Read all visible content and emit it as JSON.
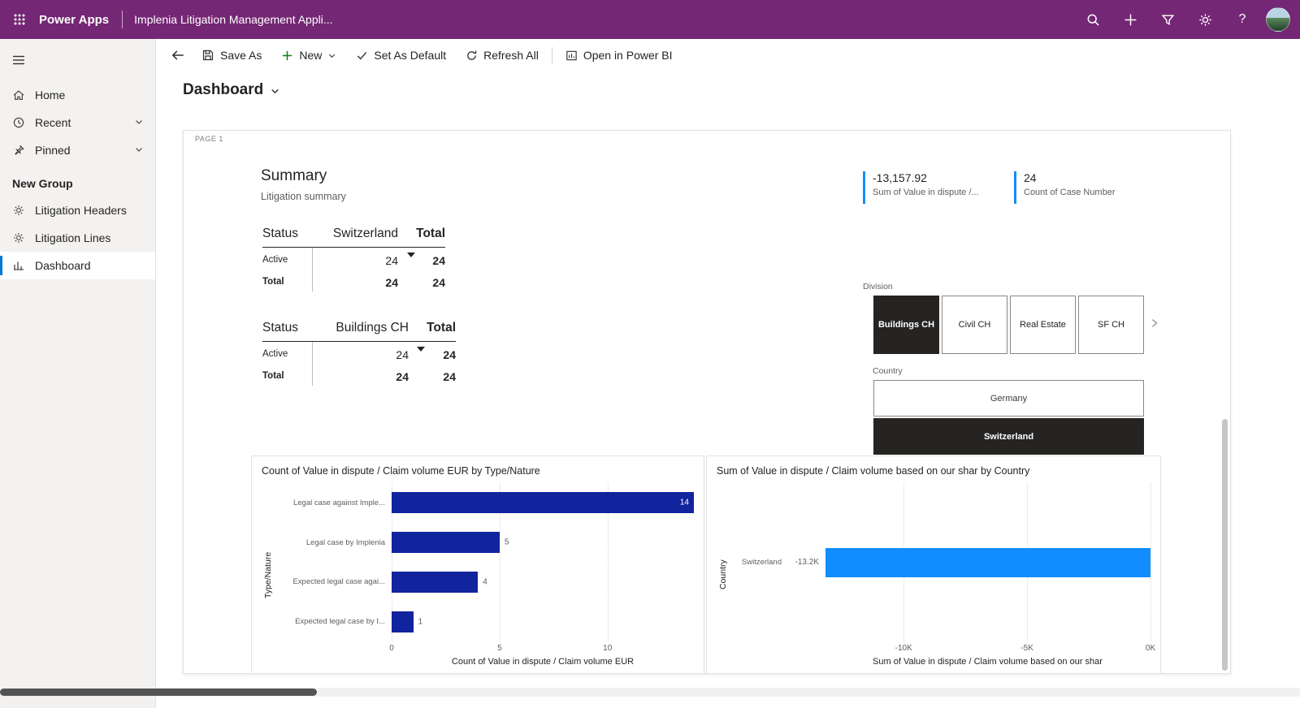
{
  "topbar": {
    "brand": "Power Apps",
    "app_title": "Implenia Litigation Management Appli..."
  },
  "sidebar": {
    "items": [
      {
        "label": "Home"
      },
      {
        "label": "Recent"
      },
      {
        "label": "Pinned"
      }
    ],
    "group_label": "New Group",
    "group_items": [
      {
        "label": "Litigation Headers"
      },
      {
        "label": "Litigation Lines"
      },
      {
        "label": "Dashboard"
      }
    ]
  },
  "toolbar": {
    "save_as": "Save As",
    "new": "New",
    "set_as_default": "Set As Default",
    "refresh_all": "Refresh All",
    "open_power_bi": "Open in Power BI"
  },
  "page": {
    "title": "Dashboard",
    "report_page_label": "PAGE 1"
  },
  "summary": {
    "title": "Summary",
    "subtitle": "Litigation summary"
  },
  "kpis": [
    {
      "value": "-13,157.92",
      "label": "Sum of Value in dispute /..."
    },
    {
      "value": "24",
      "label": "Count of Case Number"
    }
  ],
  "matrices": [
    {
      "row_header": "Status",
      "columns": [
        "Switzerland",
        "Total"
      ],
      "rows": [
        {
          "label": "Active",
          "values": [
            "24",
            "24"
          ]
        },
        {
          "label": "Total",
          "values": [
            "24",
            "24"
          ]
        }
      ]
    },
    {
      "row_header": "Status",
      "columns": [
        "Buildings CH",
        "Total"
      ],
      "rows": [
        {
          "label": "Active",
          "values": [
            "24",
            "24"
          ]
        },
        {
          "label": "Total",
          "values": [
            "24",
            "24"
          ]
        }
      ]
    }
  ],
  "slicers": {
    "division": {
      "label": "Division",
      "options": [
        {
          "label": "Buildings CH",
          "selected": true
        },
        {
          "label": "Civil CH",
          "selected": false
        },
        {
          "label": "Real Estate",
          "selected": false
        },
        {
          "label": "SF CH",
          "selected": false
        }
      ]
    },
    "country": {
      "label": "Country",
      "options": [
        {
          "label": "Germany",
          "selected": false
        },
        {
          "label": "Switzerland",
          "selected": true
        }
      ]
    }
  },
  "chart_data": [
    {
      "type": "bar",
      "orientation": "horizontal",
      "title": "Count of Value in dispute / Claim volume EUR by Type/Nature",
      "categories": [
        "Legal case against Imple...",
        "Legal case by Implenia",
        "Expected legal case agai...",
        "Expected legal case by I..."
      ],
      "values": [
        14,
        5,
        4,
        1
      ],
      "data_labels": [
        "14",
        "5",
        "4",
        "1"
      ],
      "xlabel": "Count of Value in dispute / Claim volume EUR",
      "ylabel": "Type/Nature",
      "xlim": [
        0,
        14
      ],
      "xticks": [
        {
          "value": 0,
          "label": "0"
        },
        {
          "value": 5,
          "label": "5"
        },
        {
          "value": 10,
          "label": "10"
        }
      ],
      "grid": "dotted-vertical",
      "legend": "none",
      "bar_color": "#12239E"
    },
    {
      "type": "bar",
      "orientation": "horizontal",
      "title": "Sum of Value in dispute / Claim volume based on our shar by Country",
      "categories": [
        "Switzerland"
      ],
      "values": [
        -13157.92
      ],
      "data_labels": [
        "-13.2K"
      ],
      "xlabel": "Sum of Value in dispute / Claim volume based on our shar",
      "ylabel": "Country",
      "xlim": [
        -13200,
        0
      ],
      "xticks": [
        {
          "value": -10000,
          "label": "-10K"
        },
        {
          "value": -5000,
          "label": "-5K"
        },
        {
          "value": 0,
          "label": "0K"
        }
      ],
      "grid": "dotted-vertical",
      "legend": "none",
      "bar_color": "#118DFF"
    }
  ],
  "colors": {
    "topbar_bg": "#742774",
    "accent_blue": "#118DFF",
    "dark_blue": "#12239E",
    "slicer_selected": "#252423",
    "nav_selected_bar": "#0078D4"
  },
  "icons": [
    "waffle-icon",
    "search-icon",
    "add-icon",
    "filter-icon",
    "settings-gear-icon",
    "help-icon",
    "avatar",
    "hamburger-icon",
    "home-icon",
    "clock-icon",
    "pin-icon",
    "chevron-down-icon",
    "table-icon",
    "dashboard-icon",
    "back-arrow-icon",
    "save-icon",
    "check-icon",
    "refresh-icon",
    "power-bi-icon",
    "chevron-right-icon",
    "sort-indicator"
  ]
}
